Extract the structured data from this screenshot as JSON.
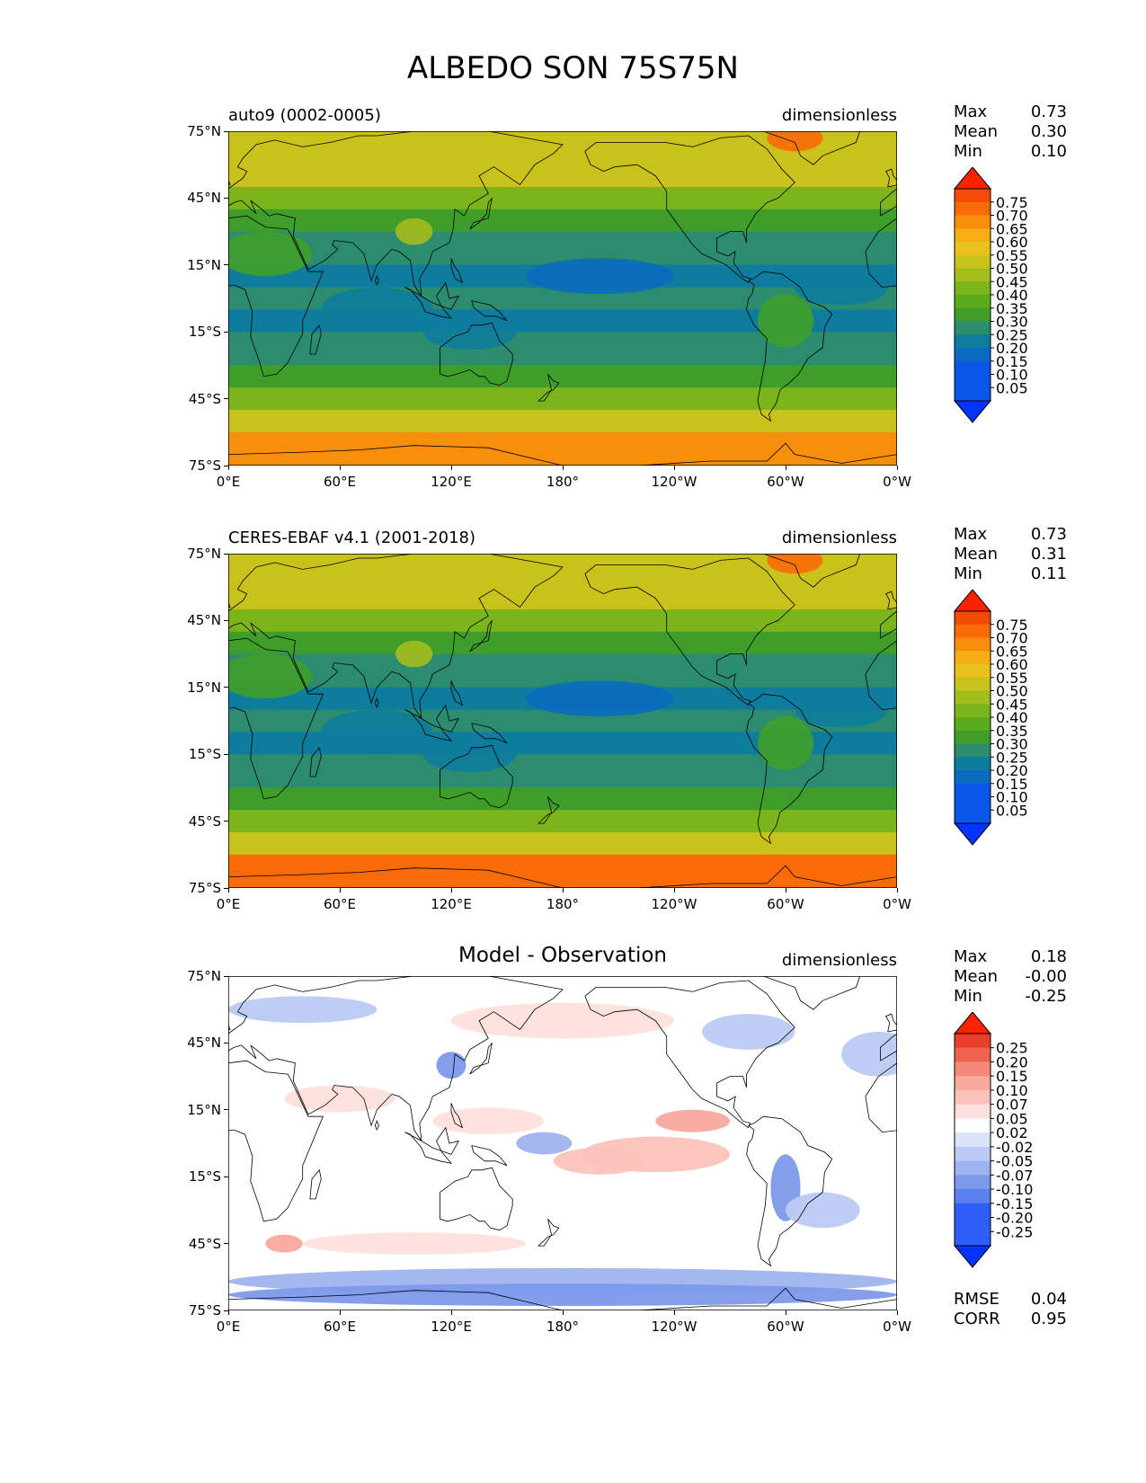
{
  "figure": {
    "title": "ALBEDO SON 75S75N"
  },
  "axes": {
    "x_ticks": [
      "0°E",
      "60°E",
      "120°E",
      "180°",
      "120°W",
      "60°W",
      "0°W"
    ],
    "y_ticks": [
      "75°N",
      "45°N",
      "15°N",
      "15°S",
      "45°S",
      "75°S"
    ]
  },
  "panels": [
    {
      "id": "model",
      "title": "auto9 (0002-0005)",
      "units": "dimensionless",
      "stats": {
        "max_label": "Max",
        "max": "0.73",
        "mean_label": "Mean",
        "mean": "0.30",
        "min_label": "Min",
        "min": "0.10"
      },
      "colorbar": [
        "0.75",
        "0.70",
        "0.65",
        "0.60",
        "0.55",
        "0.50",
        "0.45",
        "0.40",
        "0.35",
        "0.30",
        "0.25",
        "0.20",
        "0.15",
        "0.10",
        "0.05"
      ]
    },
    {
      "id": "obs",
      "title": "CERES-EBAF v4.1 (2001-2018)",
      "units": "dimensionless",
      "stats": {
        "max_label": "Max",
        "max": "0.73",
        "mean_label": "Mean",
        "mean": "0.31",
        "min_label": "Min",
        "min": "0.11"
      },
      "colorbar": [
        "0.75",
        "0.70",
        "0.65",
        "0.60",
        "0.55",
        "0.50",
        "0.45",
        "0.40",
        "0.35",
        "0.30",
        "0.25",
        "0.20",
        "0.15",
        "0.10",
        "0.05"
      ]
    },
    {
      "id": "diff",
      "title": "Model - Observation",
      "units": "dimensionless",
      "stats": {
        "max_label": "Max",
        "max": "0.18",
        "mean_label": "Mean",
        "mean": "-0.00",
        "min_label": "Min",
        "min": "-0.25"
      },
      "colorbar": [
        "0.25",
        "0.20",
        "0.15",
        "0.10",
        "0.07",
        "0.05",
        "0.02",
        "-0.02",
        "-0.05",
        "-0.07",
        "-0.10",
        "-0.15",
        "-0.20",
        "-0.25"
      ],
      "rmse_label": "RMSE",
      "rmse": "0.04",
      "corr_label": "CORR",
      "corr": "0.95"
    }
  ],
  "colors": {
    "seq": [
      "#0433ff",
      "#0a56e8",
      "#0a6bc0",
      "#0e7c9c",
      "#2b8c6e",
      "#3f9e2a",
      "#5aac1a",
      "#7cb41c",
      "#a3bd1c",
      "#c8c21a",
      "#e9c31c",
      "#f7ae12",
      "#f98e0c",
      "#f96b08",
      "#f34a04",
      "#ff2200"
    ],
    "div": [
      "#0433ff",
      "#2f5ef6",
      "#5a7fee",
      "#7d99ea",
      "#9fb3ee",
      "#bccaf4",
      "#dbe3fa",
      "#ffffff",
      "#fde0dc",
      "#fbc3bb",
      "#f8a89d",
      "#f5887a",
      "#f06250",
      "#ea3d2a",
      "#ff2200"
    ]
  }
}
